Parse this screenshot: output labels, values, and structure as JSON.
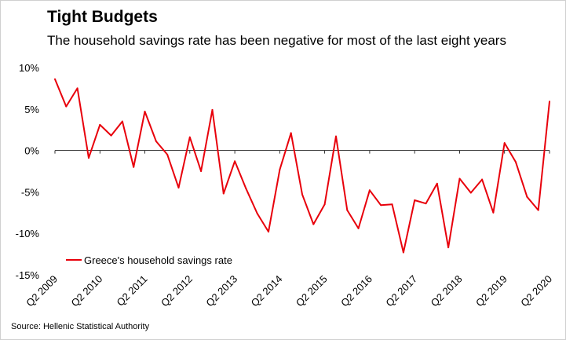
{
  "chart_data": {
    "type": "line",
    "title": "Tight Budgets",
    "subtitle": "The household savings rate has been negative for most of the last eight years",
    "source": "Source: Hellenic Statistical Authority",
    "ylim": [
      -15,
      10
    ],
    "y_ticks": [
      "10%",
      "5%",
      "0%",
      "-5%",
      "-10%",
      "-15%"
    ],
    "y_tick_values": [
      10,
      5,
      0,
      -5,
      -10,
      -15
    ],
    "x_ticks": [
      "Q2 2009",
      "Q2 2010",
      "Q2 2011",
      "Q2 2012",
      "Q2 2013",
      "Q2 2014",
      "Q2 2015",
      "Q2 2016",
      "Q2 2017",
      "Q2 2018",
      "Q2 2019",
      "Q2 2020"
    ],
    "grid": false,
    "legend": "bottom-left",
    "color": "#e8000b",
    "series": [
      {
        "name": "Greece's household savings rate",
        "x": [
          "Q2 2009",
          "Q3 2009",
          "Q4 2009",
          "Q1 2010",
          "Q2 2010",
          "Q3 2010",
          "Q4 2010",
          "Q1 2011",
          "Q2 2011",
          "Q3 2011",
          "Q4 2011",
          "Q1 2012",
          "Q2 2012",
          "Q3 2012",
          "Q4 2012",
          "Q1 2013",
          "Q2 2013",
          "Q3 2013",
          "Q4 2013",
          "Q1 2014",
          "Q2 2014",
          "Q3 2014",
          "Q4 2014",
          "Q1 2015",
          "Q2 2015",
          "Q3 2015",
          "Q4 2015",
          "Q1 2016",
          "Q2 2016",
          "Q3 2016",
          "Q4 2016",
          "Q1 2017",
          "Q2 2017",
          "Q3 2017",
          "Q4 2017",
          "Q1 2018",
          "Q2 2018",
          "Q3 2018",
          "Q4 2018",
          "Q1 2019",
          "Q2 2019",
          "Q3 2019",
          "Q4 2019",
          "Q1 2020",
          "Q2 2020"
        ],
        "values": [
          8.6,
          5.3,
          7.5,
          -0.9,
          3.1,
          1.8,
          3.5,
          -2.0,
          4.7,
          1.1,
          -0.5,
          -4.5,
          1.6,
          -2.5,
          4.9,
          -5.2,
          -1.3,
          -4.6,
          -7.6,
          -9.8,
          -2.3,
          2.1,
          -5.3,
          -8.9,
          -6.5,
          1.7,
          -7.2,
          -9.4,
          -4.8,
          -6.6,
          -6.5,
          -12.3,
          -6.0,
          -6.4,
          -4.0,
          -11.7,
          -3.4,
          -5.1,
          -3.5,
          -7.5,
          0.9,
          -1.4,
          -5.6,
          -7.2,
          5.9
        ]
      }
    ]
  }
}
